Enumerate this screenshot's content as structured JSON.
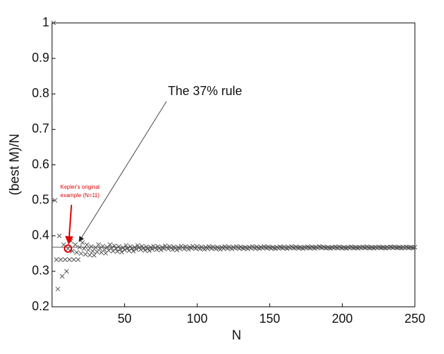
{
  "chart_data": {
    "type": "scatter",
    "marker": "x",
    "color": "#555555",
    "xlabel": "N",
    "ylabel": "(best M)/N",
    "xlim": [
      0,
      250
    ],
    "ylim": [
      0.2,
      1
    ],
    "xticks": [
      50,
      100,
      150,
      200,
      250
    ],
    "yticks": [
      0.2,
      0.3,
      0.4,
      0.5,
      0.6,
      0.7,
      0.8,
      0.9,
      1
    ],
    "reference_line": 0.368,
    "annotation": "The 37% rule",
    "highlight": {
      "index": 10,
      "color": "#e00000",
      "text": [
        "Kepler's original",
        "example (N=11)"
      ]
    },
    "x": [
      1,
      2,
      3,
      4,
      5,
      6,
      7,
      8,
      9,
      10,
      11,
      12,
      13,
      14,
      15,
      16,
      17,
      18,
      19,
      20,
      21,
      22,
      23,
      24,
      25,
      26,
      27,
      28,
      29,
      30,
      31,
      32,
      33,
      34,
      35,
      36,
      37,
      38,
      39,
      40,
      41,
      42,
      43,
      44,
      45,
      46,
      47,
      48,
      49,
      50,
      51,
      52,
      53,
      54,
      55,
      56,
      57,
      58,
      59,
      60,
      61,
      62,
      63,
      64,
      65,
      66,
      67,
      68,
      69,
      70,
      71,
      72,
      73,
      74,
      75,
      76,
      77,
      78,
      79,
      80,
      81,
      82,
      83,
      84,
      85,
      86,
      87,
      88,
      89,
      90,
      91,
      92,
      93,
      94,
      95,
      96,
      97,
      98,
      99,
      100,
      101,
      102,
      103,
      104,
      105,
      106,
      107,
      108,
      109,
      110,
      111,
      112,
      113,
      114,
      115,
      116,
      117,
      118,
      119,
      120,
      121,
      122,
      123,
      124,
      125,
      126,
      127,
      128,
      129,
      130,
      131,
      132,
      133,
      134,
      135,
      136,
      137,
      138,
      139,
      140,
      141,
      142,
      143,
      144,
      145,
      146,
      147,
      148,
      149,
      150,
      151,
      152,
      153,
      154,
      155,
      156,
      157,
      158,
      159,
      160,
      161,
      162,
      163,
      164,
      165,
      166,
      167,
      168,
      169,
      170,
      171,
      172,
      173,
      174,
      175,
      176,
      177,
      178,
      179,
      180,
      181,
      182,
      183,
      184,
      185,
      186,
      187,
      188,
      189,
      190,
      191,
      192,
      193,
      194,
      195,
      196,
      197,
      198,
      199,
      200,
      201,
      202,
      203,
      204,
      205,
      206,
      207,
      208,
      209,
      210,
      211,
      212,
      213,
      214,
      215,
      216,
      217,
      218,
      219,
      220,
      221,
      222,
      223,
      224,
      225,
      226,
      227,
      228,
      229,
      230,
      231,
      232,
      233,
      234,
      235,
      236,
      237,
      238,
      239,
      240,
      241,
      242,
      243,
      244,
      245,
      246,
      247,
      248,
      249,
      250
    ],
    "values": [
      1,
      0.5,
      0.333,
      0.25,
      0.4,
      0.333,
      0.286,
      0.375,
      0.333,
      0.3,
      0.364,
      0.333,
      0.385,
      0.357,
      0.333,
      0.375,
      0.353,
      0.333,
      0.368,
      0.35,
      0.381,
      0.364,
      0.348,
      0.375,
      0.36,
      0.346,
      0.37,
      0.357,
      0.345,
      0.367,
      0.355,
      0.375,
      0.364,
      0.353,
      0.371,
      0.361,
      0.351,
      0.368,
      0.359,
      0.375,
      0.366,
      0.357,
      0.372,
      0.364,
      0.356,
      0.37,
      0.362,
      0.354,
      0.367,
      0.36,
      0.373,
      0.365,
      0.358,
      0.37,
      0.364,
      0.357,
      0.368,
      0.362,
      0.373,
      0.367,
      0.361,
      0.371,
      0.365,
      0.359,
      0.369,
      0.364,
      0.358,
      0.368,
      0.362,
      0.371,
      0.366,
      0.361,
      0.37,
      0.365,
      0.36,
      0.368,
      0.364,
      0.372,
      0.367,
      0.363,
      0.37,
      0.366,
      0.361,
      0.369,
      0.365,
      0.36,
      0.368,
      0.364,
      0.371,
      0.367,
      0.363,
      0.37,
      0.366,
      0.362,
      0.368,
      0.365,
      0.371,
      0.367,
      0.364,
      0.37,
      0.366,
      0.363,
      0.369,
      0.365,
      0.362,
      0.368,
      0.364,
      0.37,
      0.367,
      0.364,
      0.369,
      0.366,
      0.363,
      0.368,
      0.365,
      0.362,
      0.368,
      0.364,
      0.37,
      0.367,
      0.364,
      0.369,
      0.366,
      0.363,
      0.368,
      0.365,
      0.37,
      0.367,
      0.364,
      0.369,
      0.366,
      0.364,
      0.368,
      0.366,
      0.363,
      0.368,
      0.365,
      0.37,
      0.367,
      0.364,
      0.369,
      0.366,
      0.364,
      0.368,
      0.366,
      0.37,
      0.367,
      0.365,
      0.369,
      0.367,
      0.364,
      0.368,
      0.366,
      0.364,
      0.368,
      0.365,
      0.369,
      0.367,
      0.365,
      0.369,
      0.366,
      0.364,
      0.368,
      0.366,
      0.37,
      0.367,
      0.365,
      0.369,
      0.367,
      0.365,
      0.368,
      0.366,
      0.364,
      0.368,
      0.366,
      0.369,
      0.367,
      0.365,
      0.369,
      0.367,
      0.365,
      0.368,
      0.366,
      0.37,
      0.368,
      0.366,
      0.369,
      0.367,
      0.365,
      0.368,
      0.366,
      0.365,
      0.368,
      0.366,
      0.369,
      0.367,
      0.365,
      0.369,
      0.367,
      0.365,
      0.368,
      0.366,
      0.365,
      0.368,
      0.366,
      0.369,
      0.367,
      0.365,
      0.368,
      0.367,
      0.365,
      0.368,
      0.366,
      0.369,
      0.367,
      0.366,
      0.369,
      0.367,
      0.365,
      0.368,
      0.367,
      0.365,
      0.368,
      0.366,
      0.369,
      0.367,
      0.366,
      0.368,
      0.367,
      0.365,
      0.368,
      0.366,
      0.369,
      0.368,
      0.366,
      0.369,
      0.367,
      0.366,
      0.368,
      0.367,
      0.365,
      0.368,
      0.366,
      0.369,
      0.367,
      0.366,
      0.368,
      0.367,
      0.365,
      0.368
    ]
  }
}
